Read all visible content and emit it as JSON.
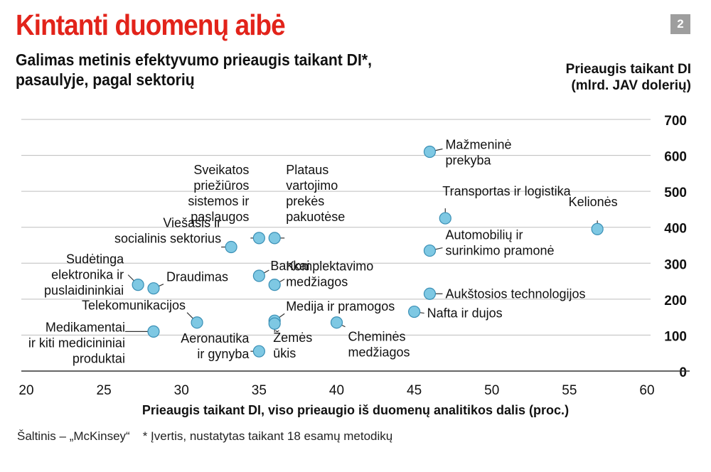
{
  "header": {
    "title": "Kintanti duomenų aibė",
    "badge": "2",
    "subtitle_lines": [
      "Galimas metinis efektyvumo prieaugis taikant DI*,",
      "pasaulyje, pagal sektorių"
    ]
  },
  "footer": {
    "source": "Šaltinis – „McKinsey“",
    "note": "* Įvertis, nustatytas taikant 18 esamų metodikų"
  },
  "chart_data": {
    "type": "scatter",
    "title": "Kintanti duomenų aibė",
    "subtitle": "Galimas metinis efektyvumo prieaugis taikant DI*, pasaulyje, pagal sektorių",
    "xlabel": "Prieaugis taikant DI, viso prieaugio iš duomenų analitikos dalis (proc.)",
    "ylabel_lines": [
      "Prieaugis taikant DI",
      "(mlrd. JAV dolerių)"
    ],
    "xlim": [
      20,
      62
    ],
    "ylim": [
      0,
      700
    ],
    "xticks": [
      20,
      25,
      30,
      35,
      40,
      45,
      50,
      55,
      60
    ],
    "yticks": [
      0,
      100,
      200,
      300,
      400,
      500,
      600,
      700
    ],
    "grid": "horizontal",
    "y_axis_side": "right",
    "point_color": "#7ec8e3",
    "points": [
      {
        "x": 46,
        "y": 610,
        "label": [
          "Mažmeninė",
          "prekyba"
        ]
      },
      {
        "x": 47,
        "y": 425,
        "label": [
          "Transportas ir logistika"
        ]
      },
      {
        "x": 56.8,
        "y": 395,
        "label": [
          "Kelionės"
        ]
      },
      {
        "x": 46,
        "y": 335,
        "label": [
          "Automobilių ir",
          "surinkimo pramonė"
        ]
      },
      {
        "x": 46,
        "y": 215,
        "label": [
          "Aukštosios technologijos"
        ]
      },
      {
        "x": 45,
        "y": 165,
        "label": [
          "Nafta ir dujos"
        ]
      },
      {
        "x": 35,
        "y": 370,
        "label": [
          "Sveikatos",
          "priežiūros",
          "sistemos ir",
          "paslaugos"
        ]
      },
      {
        "x": 36,
        "y": 370,
        "label": [
          "Plataus",
          "vartojimo",
          "prekės",
          "pakuotėse"
        ]
      },
      {
        "x": 33.2,
        "y": 345,
        "label": [
          "Viešasis ir",
          "socialinis sektorius"
        ]
      },
      {
        "x": 35,
        "y": 265,
        "label": [
          "Bankai"
        ]
      },
      {
        "x": 36,
        "y": 240,
        "label": [
          "Komplektavimo",
          "medžiagos"
        ]
      },
      {
        "x": 27.2,
        "y": 240,
        "label": [
          "Sudėtinga",
          "elektronika ir",
          "puslaidininkiai"
        ]
      },
      {
        "x": 28.2,
        "y": 230,
        "label": [
          "Draudimas"
        ]
      },
      {
        "x": 31,
        "y": 135,
        "label": [
          "Telekomunikacijos"
        ]
      },
      {
        "x": 28.2,
        "y": 110,
        "label": [
          "Medikamentai",
          "ir kiti medicininiai",
          "produktai"
        ]
      },
      {
        "x": 36,
        "y": 140,
        "label": [
          "Medija ir pramogos"
        ]
      },
      {
        "x": 36,
        "y": 132,
        "label": [
          "Žemės",
          "ūkis"
        ]
      },
      {
        "x": 40,
        "y": 135,
        "label": [
          "Cheminės",
          "medžiagos"
        ]
      },
      {
        "x": 35,
        "y": 55,
        "label": [
          "Aeronautika",
          "ir gynyba"
        ]
      }
    ]
  }
}
